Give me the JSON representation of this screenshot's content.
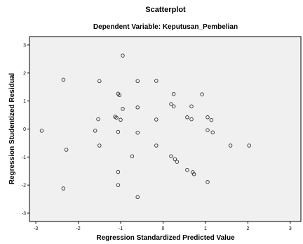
{
  "chart_data": {
    "type": "scatter",
    "title": "Scatterplot",
    "subtitle": "Dependent Variable: Keputusan_Pembelian",
    "xlabel": "Regression Standardized Predicted Value",
    "ylabel": "Regression Studentized Residual",
    "xlim": [
      -3.15,
      3.25
    ],
    "ylim": [
      -3.3,
      3.3
    ],
    "xticks": [
      -3,
      -2,
      -1,
      0,
      1,
      2,
      3
    ],
    "yticks": [
      -3,
      -2,
      -1,
      0,
      1,
      2,
      3
    ],
    "grid": false,
    "plot_background": "#f0f0f0",
    "marker_color": "#333333",
    "points": [
      {
        "x": -2.86,
        "y": -0.06
      },
      {
        "x": -2.35,
        "y": 1.76
      },
      {
        "x": -2.35,
        "y": -2.12
      },
      {
        "x": -2.28,
        "y": -0.74
      },
      {
        "x": -1.6,
        "y": -0.06
      },
      {
        "x": -1.53,
        "y": 0.35
      },
      {
        "x": -1.5,
        "y": 1.71
      },
      {
        "x": -1.5,
        "y": -0.59
      },
      {
        "x": -1.13,
        "y": 0.44
      },
      {
        "x": -1.1,
        "y": 0.41
      },
      {
        "x": -1.06,
        "y": 1.26
      },
      {
        "x": -1.06,
        "y": -0.1
      },
      {
        "x": -1.06,
        "y": -1.53
      },
      {
        "x": -1.06,
        "y": -2.0
      },
      {
        "x": -1.03,
        "y": 1.21
      },
      {
        "x": -1.0,
        "y": 0.33
      },
      {
        "x": -0.95,
        "y": 0.72
      },
      {
        "x": -0.95,
        "y": 2.62
      },
      {
        "x": -0.73,
        "y": -0.97
      },
      {
        "x": -0.6,
        "y": 1.71
      },
      {
        "x": -0.6,
        "y": 0.77
      },
      {
        "x": -0.6,
        "y": -0.13
      },
      {
        "x": -0.6,
        "y": -2.43
      },
      {
        "x": -0.16,
        "y": 1.72
      },
      {
        "x": -0.16,
        "y": 0.34
      },
      {
        "x": -0.16,
        "y": -0.59
      },
      {
        "x": 0.19,
        "y": 0.89
      },
      {
        "x": 0.19,
        "y": -0.97
      },
      {
        "x": 0.25,
        "y": 1.25
      },
      {
        "x": 0.25,
        "y": 0.81
      },
      {
        "x": 0.28,
        "y": -1.08
      },
      {
        "x": 0.33,
        "y": -1.17
      },
      {
        "x": 0.57,
        "y": 0.42
      },
      {
        "x": 0.57,
        "y": -1.46
      },
      {
        "x": 0.67,
        "y": 0.81
      },
      {
        "x": 0.67,
        "y": 0.35
      },
      {
        "x": 0.7,
        "y": -1.54
      },
      {
        "x": 0.73,
        "y": -1.61
      },
      {
        "x": 0.92,
        "y": 1.24
      },
      {
        "x": 1.05,
        "y": 0.42
      },
      {
        "x": 1.05,
        "y": -0.04
      },
      {
        "x": 1.05,
        "y": -1.89
      },
      {
        "x": 1.14,
        "y": 0.32
      },
      {
        "x": 1.17,
        "y": -0.12
      },
      {
        "x": 1.59,
        "y": -0.59
      },
      {
        "x": 2.03,
        "y": -0.59
      }
    ]
  }
}
